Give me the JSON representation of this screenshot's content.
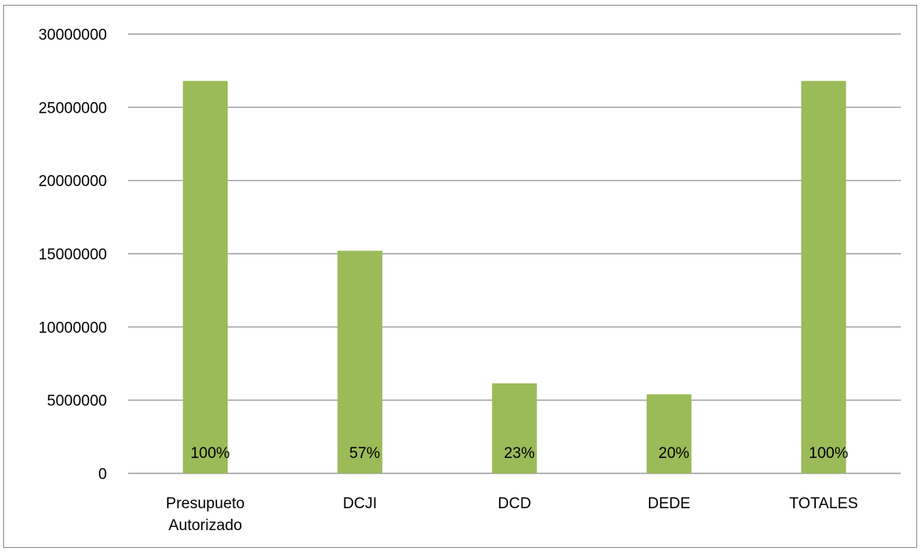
{
  "chart_data": {
    "type": "bar",
    "title": "",
    "xlabel": "",
    "ylabel": "",
    "categories": [
      [
        "Presupueto",
        "Autorizado"
      ],
      [
        "DCJI"
      ],
      [
        "DCD"
      ],
      [
        "DEDE"
      ],
      [
        "TOTALES"
      ]
    ],
    "values": [
      26800000,
      15200000,
      6150000,
      5400000,
      26800000
    ],
    "data_labels": [
      "100%",
      "57%",
      "23%",
      "20%",
      "100%"
    ],
    "ylim": [
      0,
      30000000
    ],
    "yticks": [
      "0",
      "5000000",
      "10000000",
      "15000000",
      "20000000",
      "25000000",
      "30000000"
    ],
    "grid": true,
    "legend": "none",
    "colors": {
      "bar": "#9bbb59",
      "grid": "#8c8c8c",
      "frame": "#8c8c8c"
    }
  }
}
